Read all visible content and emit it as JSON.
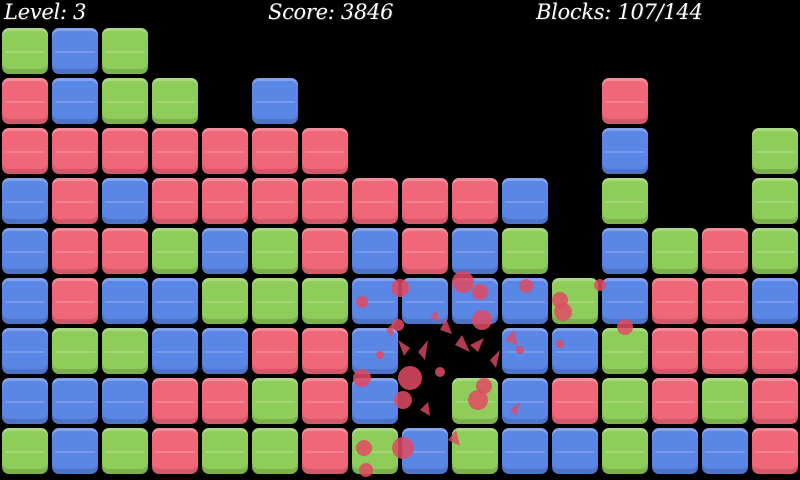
{
  "hud": {
    "level": "Level: 3",
    "score": "Score: 3846",
    "blocks": "Blocks: 107/144"
  },
  "colors": {
    "g": "#8fcd5a",
    "b": "#5a86e6",
    "r": "#f06779",
    "burst": "#e04a64"
  },
  "board": {
    "columns": 16,
    "grid": [
      [
        "g",
        "b",
        "g",
        "",
        "",
        "",
        "",
        "",
        "",
        "",
        "",
        "",
        "",
        "",
        "",
        ""
      ],
      [
        "r",
        "b",
        "g",
        "g",
        "",
        "b",
        "",
        "",
        "",
        "",
        "",
        "",
        "r",
        "",
        "",
        ""
      ],
      [
        "r",
        "r",
        "r",
        "r",
        "r",
        "r",
        "r",
        "",
        "",
        "",
        "",
        "",
        "b",
        "",
        "",
        "g"
      ],
      [
        "b",
        "r",
        "b",
        "r",
        "r",
        "r",
        "r",
        "r",
        "r",
        "r",
        "b",
        "",
        "g",
        "",
        "",
        "g"
      ],
      [
        "b",
        "r",
        "r",
        "g",
        "b",
        "g",
        "r",
        "b",
        "r",
        "b",
        "g",
        "",
        "b",
        "g",
        "r",
        "g"
      ],
      [
        "b",
        "r",
        "b",
        "b",
        "g",
        "g",
        "g",
        "b",
        "b",
        "b",
        "b",
        "g",
        "b",
        "r",
        "r",
        "b"
      ],
      [
        "b",
        "g",
        "g",
        "b",
        "b",
        "r",
        "r",
        "b",
        "",
        "",
        "b",
        "b",
        "g",
        "r",
        "r",
        "r"
      ],
      [
        "b",
        "b",
        "b",
        "r",
        "r",
        "g",
        "r",
        "b",
        "",
        "g",
        "b",
        "r",
        "g",
        "r",
        "g",
        "r"
      ],
      [
        "g",
        "b",
        "g",
        "r",
        "g",
        "g",
        "r",
        "g",
        "b",
        "g",
        "b",
        "b",
        "g",
        "b",
        "b",
        "r"
      ]
    ]
  }
}
